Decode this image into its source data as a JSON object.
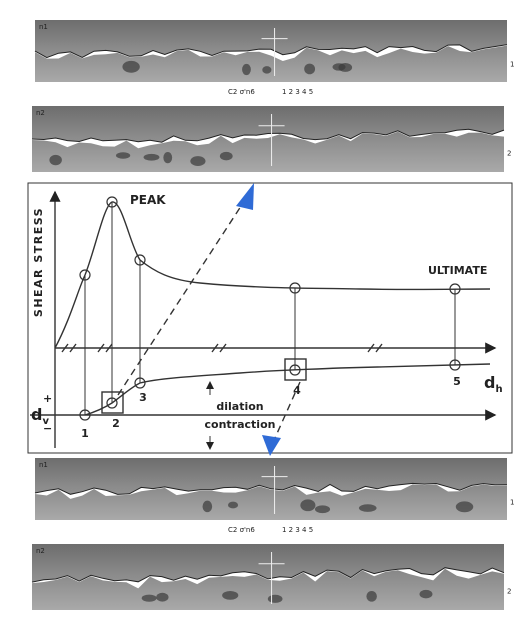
{
  "photos_top": {
    "strip_1": {
      "tag": "n1",
      "side_number": "1"
    },
    "caption": "C2 σ'n6",
    "scale": "1 2 3 4 5",
    "strip_2": {
      "tag": "n2",
      "side_number": "2"
    }
  },
  "diagram": {
    "y_axis_label": "SHEAR STRESS",
    "peak_label": "PEAK",
    "ultimate_label": "ULTIMATE",
    "dh_label": "d",
    "dh_sub": "h",
    "dv_label": "d",
    "dv_sub": "v",
    "plus": "+",
    "minus": "−",
    "dilation": "dilation",
    "contraction": "contraction",
    "points": [
      "1",
      "2",
      "3",
      "4",
      "5"
    ]
  },
  "photos_bottom": {
    "strip_1": {
      "tag": "n1",
      "side_number": "1"
    },
    "caption": "C2 σ'n6",
    "scale": "1 2 3 4 5",
    "strip_2": {
      "tag": "n2",
      "side_number": "2"
    }
  }
}
